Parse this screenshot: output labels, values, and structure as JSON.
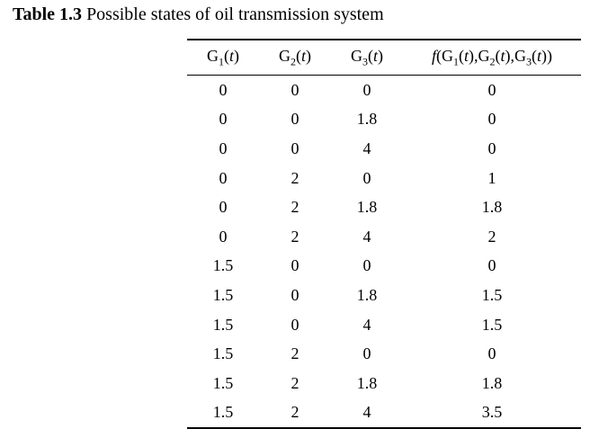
{
  "caption": {
    "label": "Table 1.3",
    "text": "Possible states of oil transmission system"
  },
  "table": {
    "rows": [
      [
        "0",
        "0",
        "0",
        "0"
      ],
      [
        "0",
        "0",
        "1.8",
        "0"
      ],
      [
        "0",
        "0",
        "4",
        "0"
      ],
      [
        "0",
        "2",
        "0",
        "1"
      ],
      [
        "0",
        "2",
        "1.8",
        "1.8"
      ],
      [
        "0",
        "2",
        "4",
        "2"
      ],
      [
        "1.5",
        "0",
        "0",
        "0"
      ],
      [
        "1.5",
        "0",
        "1.8",
        "1.5"
      ],
      [
        "1.5",
        "0",
        "4",
        "1.5"
      ],
      [
        "1.5",
        "2",
        "0",
        "0"
      ],
      [
        "1.5",
        "2",
        "1.8",
        "1.8"
      ],
      [
        "1.5",
        "2",
        "4",
        "3.5"
      ]
    ]
  }
}
